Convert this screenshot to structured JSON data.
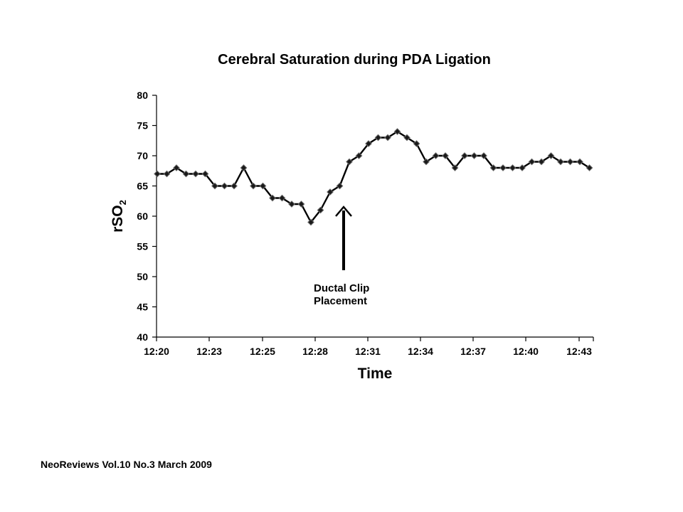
{
  "chart_data": {
    "type": "line",
    "title": "Cerebral Saturation during PDA Ligation",
    "xlabel": "Time",
    "ylabel": "rSO",
    "ylabel_subscript": "2",
    "ylim": [
      40,
      80
    ],
    "yticks": [
      40,
      45,
      50,
      55,
      60,
      65,
      70,
      75,
      80
    ],
    "xticks": [
      "12:20",
      "12:23",
      "12:25",
      "12:28",
      "12:31",
      "12:34",
      "12:37",
      "12:40",
      "12:43"
    ],
    "grid": false,
    "series": [
      {
        "marker": "diamond",
        "color": "#000000",
        "values": [
          67,
          67,
          68,
          67,
          67,
          67,
          65,
          65,
          65,
          68,
          65,
          65,
          63,
          63,
          62,
          62,
          59,
          61,
          64,
          65,
          69,
          70,
          72,
          73,
          73,
          74,
          73,
          72,
          69,
          70,
          70,
          68,
          70,
          70,
          70,
          68,
          68,
          68,
          68,
          69,
          69,
          70,
          69,
          69,
          69,
          68
        ]
      }
    ],
    "annotations": [
      {
        "type": "arrow",
        "text_lines": [
          "Ductal Clip",
          "Placement"
        ],
        "x_index": 19.75
      }
    ]
  },
  "footer": {
    "source": "NeoReviews Vol.10 No.3 March 2009"
  }
}
